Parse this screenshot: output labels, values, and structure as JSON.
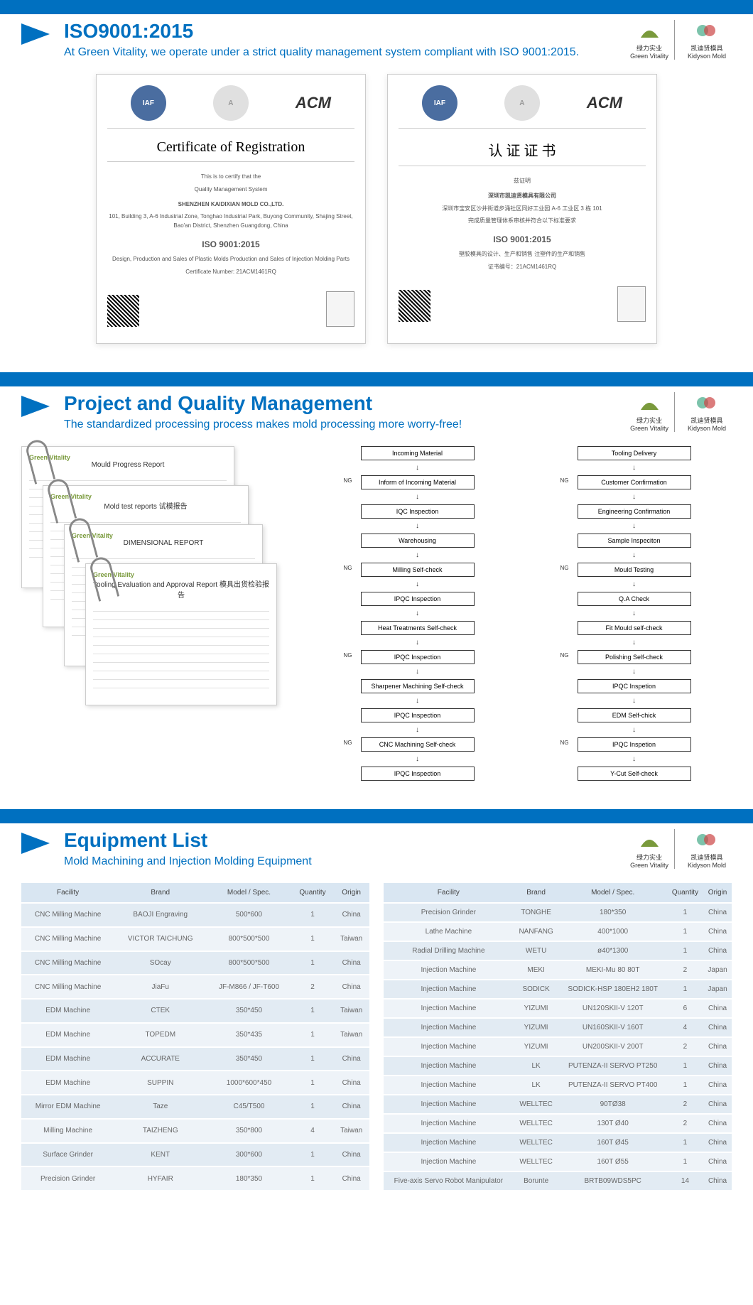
{
  "logos": {
    "left_cn": "绿力实业",
    "left_en": "Green Vitality",
    "right_cn": "凯迪贤模具",
    "right_en": "Kidyson Mold"
  },
  "s1": {
    "title": "ISO9001:2015",
    "subtitle": "At Green Vitality, we operate under a strict quality management system compliant with ISO 9001:2015.",
    "cert_en": {
      "title": "Certificate of Registration",
      "line1": "This is to certify that the",
      "line2": "Quality Management System",
      "company": "SHENZHEN KAIDIXIAN MOLD CO.,LTD.",
      "addr": "101, Building 3, A-6 Industrial Zone, Tonghao Industrial Park, Buyong Community, Shajing Street, Bao'an District, Shenzhen Guangdong, China",
      "iso": "ISO 9001:2015",
      "scope": "Design, Production and Sales of Plastic Molds Production and Sales of Injection Molding Parts",
      "certno": "Certificate Number: 21ACM1461RQ"
    },
    "cert_cn": {
      "title": "认 证 证 书",
      "line1": "兹证明",
      "company": "深圳市凯迪贤模具有限公司",
      "addr": "深圳市宝安区沙井街道步涌社区同好工业园 A-6 工业区 3 栋 101",
      "scope_cn": "完成质量管理体系审核并符合以下标准要求",
      "iso": "ISO 9001:2015",
      "range": "塑胶模具的设计、生产和销售 注塑件的生产和销售",
      "certno": "证书编号：21ACM1461RQ"
    }
  },
  "s2": {
    "title": "Project and Quality Management",
    "subtitle": "The standardized processing process makes mold processing more worry-free!",
    "reports": [
      "Mould Progress Report",
      "Mold test reports 试模报告",
      "DIMENSIONAL REPORT",
      "Tooling Evaluation and Approval Report 模具出货检验报告"
    ],
    "flow_left": [
      "Incoming Material",
      "Inform of Incoming Material",
      "IQC Inspection",
      "Warehousing",
      "Milling Self-check",
      "IPQC Inspection",
      "Heat Treatments Self-check",
      "IPQC Inspection",
      "Sharpener Machining Self-check",
      "IPQC Inspection",
      "CNC Machining Self-check",
      "IPQC Inspection"
    ],
    "flow_right": [
      "Tooling Delivery",
      "Customer Confirmation",
      "Engineering Confirmation",
      "Sample Inspeciton",
      "Mould Testing",
      "Q.A Check",
      "Fit Mould self-check",
      "Polishing Self-check",
      "IPQC Inspetion",
      "EDM Self-chick",
      "IPQC Inspetion",
      "Y-Cut Self-check"
    ]
  },
  "s3": {
    "title": "Equipment List",
    "subtitle": "Mold Machining and Injection Molding Equipment",
    "headers": [
      "Facility",
      "Brand",
      "Model / Spec.",
      "Quantity",
      "Origin"
    ],
    "left": [
      [
        "CNC Milling Machine",
        "BAOJI Engraving",
        "500*600",
        "1",
        "China"
      ],
      [
        "CNC Milling Machine",
        "VICTOR TAICHUNG",
        "800*500*500",
        "1",
        "Taiwan"
      ],
      [
        "CNC Milling Machine",
        "SOcay",
        "800*500*500",
        "1",
        "China"
      ],
      [
        "CNC Milling Machine",
        "JiaFu",
        "JF-M866 / JF-T600",
        "2",
        "China"
      ],
      [
        "EDM Machine",
        "CTEK",
        "350*450",
        "1",
        "Taiwan"
      ],
      [
        "EDM Machine",
        "TOPEDM",
        "350*435",
        "1",
        "Taiwan"
      ],
      [
        "EDM Machine",
        "ACCURATE",
        "350*450",
        "1",
        "China"
      ],
      [
        "EDM Machine",
        "SUPPIN",
        "1000*600*450",
        "1",
        "China"
      ],
      [
        "Mirror EDM Machine",
        "Taze",
        "C45/T500",
        "1",
        "China"
      ],
      [
        "Milling Machine",
        "TAIZHENG",
        "350*800",
        "4",
        "Taiwan"
      ],
      [
        "Surface Grinder",
        "KENT",
        "300*600",
        "1",
        "China"
      ],
      [
        "Precision Grinder",
        "HYFAIR",
        "180*350",
        "1",
        "China"
      ]
    ],
    "right": [
      [
        "Precision Grinder",
        "TONGHE",
        "180*350",
        "1",
        "China"
      ],
      [
        "Lathe Machine",
        "NANFANG",
        "400*1000",
        "1",
        "China"
      ],
      [
        "Radial Drilling Machine",
        "WETU",
        "ø40*1300",
        "1",
        "China"
      ],
      [
        "Injection Machine",
        "MEKI",
        "MEKI-Mu 80 80T",
        "2",
        "Japan"
      ],
      [
        "Injection Machine",
        "SODICK",
        "SODICK-HSP 180EH2 180T",
        "1",
        "Japan"
      ],
      [
        "Injection Machine",
        "YIZUMI",
        "UN120SKII-V 120T",
        "6",
        "China"
      ],
      [
        "Injection Machine",
        "YIZUMI",
        "UN160SKII-V 160T",
        "4",
        "China"
      ],
      [
        "Injection Machine",
        "YIZUMI",
        "UN200SKII-V 200T",
        "2",
        "China"
      ],
      [
        "Injection Machine",
        "LK",
        "PUTENZA-II SERVO PT250",
        "1",
        "China"
      ],
      [
        "Injection Machine",
        "LK",
        "PUTENZA-II SERVO PT400",
        "1",
        "China"
      ],
      [
        "Injection Machine",
        "WELLTEC",
        "90TØ38",
        "2",
        "China"
      ],
      [
        "Injection Machine",
        "WELLTEC",
        "130T Ø40",
        "2",
        "China"
      ],
      [
        "Injection Machine",
        "WELLTEC",
        "160T Ø45",
        "1",
        "China"
      ],
      [
        "Injection Machine",
        "WELLTEC",
        "160T Ø55",
        "1",
        "China"
      ],
      [
        "Five-axis Servo Robot Manipulator",
        "Borunte",
        "BRTB09WDS5PC",
        "14",
        "China"
      ]
    ]
  }
}
